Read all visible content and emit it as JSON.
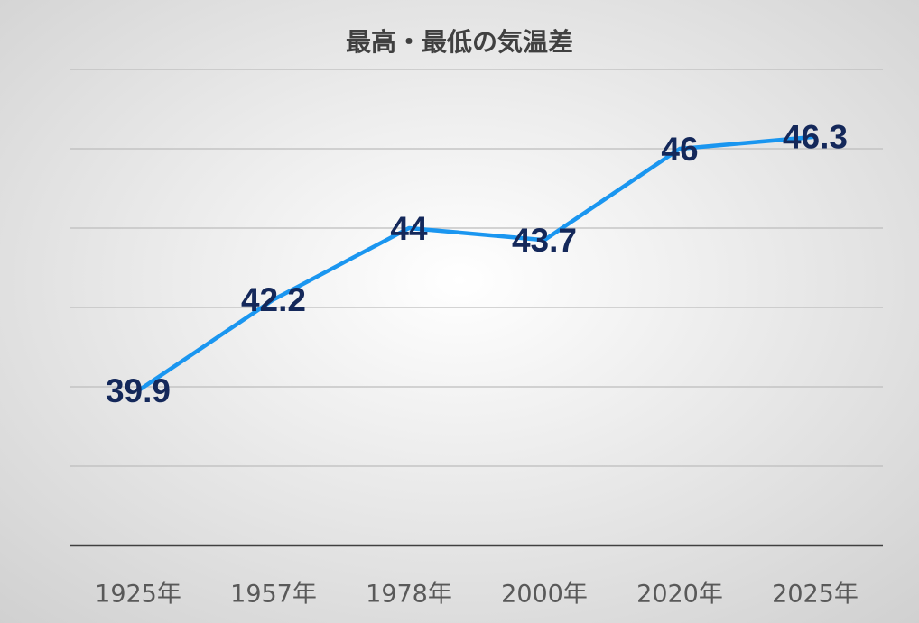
{
  "chart_data": {
    "type": "line",
    "title": "最高・最低の気温差",
    "categories": [
      "1925年",
      "1957年",
      "1978年",
      "2000年",
      "2020年",
      "2025年"
    ],
    "values": [
      39.9,
      42.2,
      44,
      43.7,
      46,
      46.3
    ],
    "color": "#1a96f0",
    "ylim": [
      36,
      48
    ],
    "yticks": [
      36,
      38,
      40,
      42,
      44,
      46,
      48
    ],
    "grid": true
  }
}
